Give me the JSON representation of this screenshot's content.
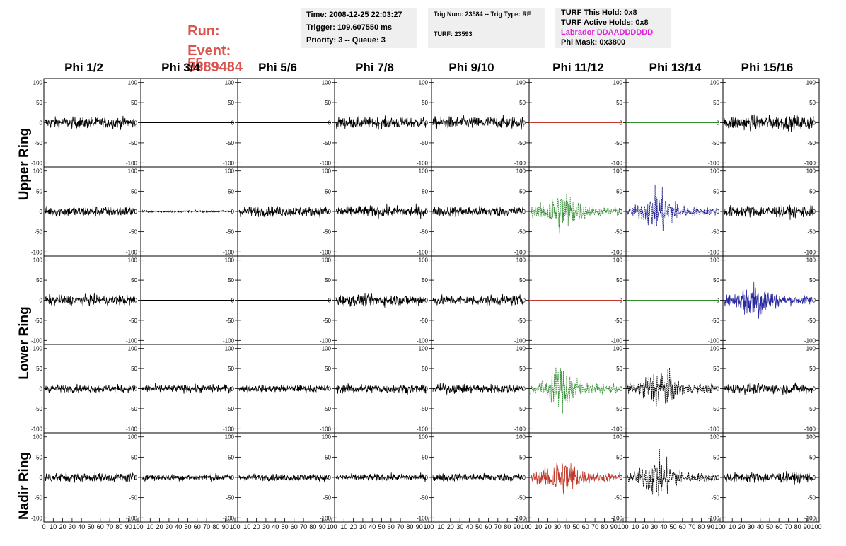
{
  "header": {
    "run_label": "Run:",
    "run_value": "55",
    "event_label": "Event:",
    "event_value": "5889484",
    "accent_color": "#d9534f"
  },
  "info_panel_1": {
    "time": "Time: 2008-12-25 22:03:27",
    "trigger": "Trigger: 109.607550 ms",
    "priority": "Priority: 3 -- Queue: 3"
  },
  "info_panel_2": {
    "trig": "Trig Num: 23584 -- Trig Type: RF",
    "turf": "TURF: 23593"
  },
  "info_panel_3": {
    "this_hold": "TURF This Hold: 0x8",
    "active_holds": "TURF Active Holds: 0x8",
    "labrador": "Labrador DDAADDDDDD",
    "labrador_color": "#e020e0",
    "phi_mask": "Phi Mask: 0x3800"
  },
  "phi_columns": [
    "Phi 1/2",
    "Phi 3/4",
    "Phi 5/6",
    "Phi 7/8",
    "Phi 9/10",
    "Phi 11/12",
    "Phi 13/14",
    "Phi 15/16"
  ],
  "ring_labels": [
    "Upper Ring",
    "Lower Ring",
    "Nadir Ring"
  ],
  "axes": {
    "y_ticks": [
      "100",
      "50",
      "0",
      "-50",
      "-100"
    ],
    "y_range": [
      -110,
      110
    ],
    "x_range": [
      0,
      100
    ],
    "x_ticks": [
      "0",
      "10",
      "20",
      "30",
      "40",
      "50",
      "60",
      "70",
      "80",
      "90",
      "100"
    ]
  },
  "trace_styles": {
    "rows": [
      [
        "noise:1.0",
        "flat",
        "flat",
        "noise:1.0",
        "noise:1.1",
        "flat-red",
        "flat-green",
        "noise:1.3"
      ],
      [
        "noise:0.9",
        "small",
        "noise:0.9",
        "noise:1.0",
        "noise:0.9",
        "burst-green",
        "burst-navy",
        "noise:1.0"
      ],
      [
        "noise:0.9",
        "flat",
        "flat",
        "noise:1.0",
        "noise:0.9",
        "flat-red",
        "flat-green",
        "burst-blue"
      ],
      [
        "noise:0.7",
        "noise:0.7",
        "noise:0.6",
        "noise:0.8",
        "noise:0.8",
        "burst-green",
        "burst-black",
        "noise:0.9"
      ],
      [
        "noise:0.8",
        "noise:0.6",
        "noise:0.6",
        "noise:0.6",
        "noise:0.7",
        "burst-red",
        "burst-black",
        "noise:0.9"
      ]
    ]
  }
}
